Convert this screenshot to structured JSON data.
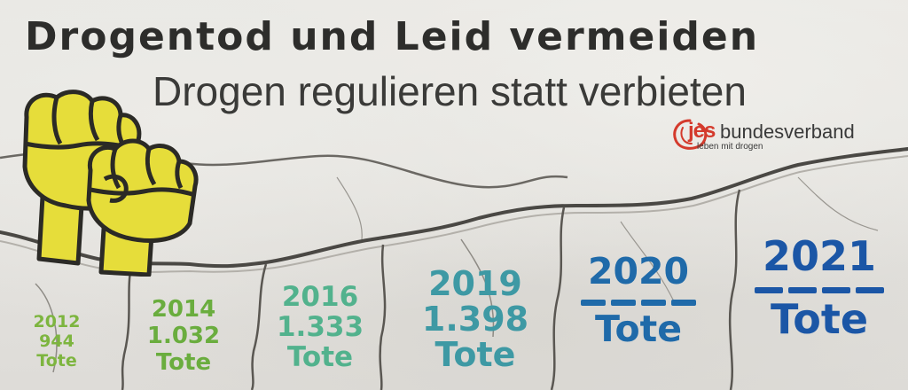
{
  "title": "Drogentod und Leid vermeiden",
  "subtitle": "Drogen regulieren statt verbieten",
  "logo": {
    "jes": "jes",
    "name": "bundesverband",
    "tagline": "leben mit drogen"
  },
  "stats": [
    {
      "year": "2012",
      "count": "944",
      "label": "Tote",
      "color": "#7db53f"
    },
    {
      "year": "2014",
      "count": "1.032",
      "label": "Tote",
      "color": "#6aad3e"
    },
    {
      "year": "2016",
      "count": "1.333",
      "label": "Tote",
      "color": "#52b28d"
    },
    {
      "year": "2019",
      "count": "1.398",
      "label": "Tote",
      "color": "#3e99a4"
    },
    {
      "year": "2020",
      "count": "",
      "label": "Tote",
      "color": "#1f6aa9"
    },
    {
      "year": "2021",
      "count": "",
      "label": "Tote",
      "color": "#1b56a6"
    }
  ],
  "colors": {
    "fist_yellow": "#e6dd3a",
    "fist_outline": "#2b2a26",
    "logo_red": "#d43a2c"
  }
}
